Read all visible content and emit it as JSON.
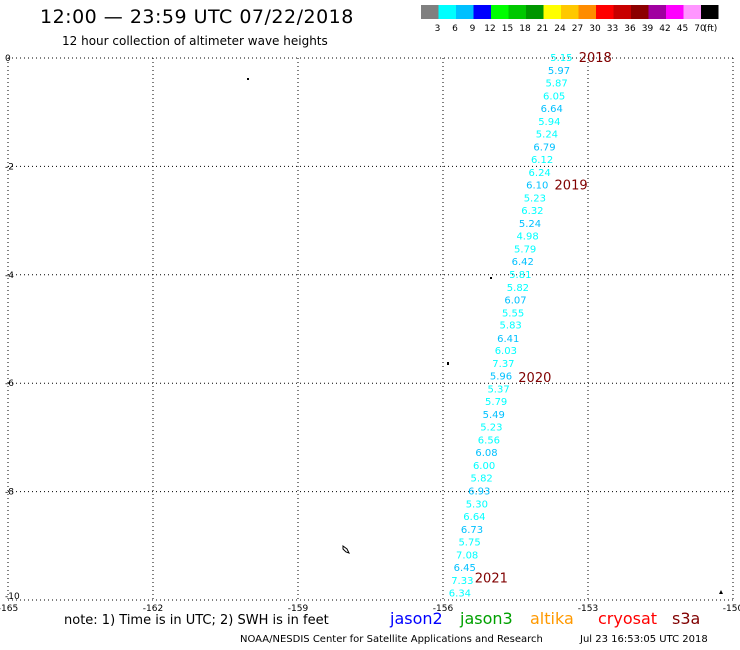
{
  "header": {
    "title": "12:00 — 23:59 UTC 07/22/2018",
    "subtitle": "12 hour collection of altimeter wave heights"
  },
  "legend": {
    "unit_label": "(ft)",
    "bins": [
      {
        "label": "3",
        "color": "#808080"
      },
      {
        "label": "6",
        "color": "#00ffff"
      },
      {
        "label": "9",
        "color": "#00c0ff"
      },
      {
        "label": "12",
        "color": "#0000ff"
      },
      {
        "label": "15",
        "color": "#00ff00"
      },
      {
        "label": "18",
        "color": "#00c800"
      },
      {
        "label": "21",
        "color": "#009600"
      },
      {
        "label": "24",
        "color": "#ffff00"
      },
      {
        "label": "27",
        "color": "#ffc800"
      },
      {
        "label": "30",
        "color": "#ff8c00"
      },
      {
        "label": "33",
        "color": "#ff0000"
      },
      {
        "label": "36",
        "color": "#c80000"
      },
      {
        "label": "39",
        "color": "#8c0000"
      },
      {
        "label": "42",
        "color": "#a000a0"
      },
      {
        "label": "45",
        "color": "#ff00ff"
      },
      {
        "label": "70",
        "color": "#ff96ff"
      },
      {
        "label": "",
        "color": "#000000"
      }
    ]
  },
  "chart_data": {
    "type": "scatter",
    "xlim": [
      -165,
      -150
    ],
    "ylim": [
      -10,
      0
    ],
    "x_ticks": [
      -165,
      -162,
      -159,
      -156,
      -153,
      -150
    ],
    "x_tick_labels": [
      "-165",
      "-162",
      "-159",
      "-156",
      "-153",
      "-150"
    ],
    "y_ticks": [
      0,
      -2,
      -4,
      -6,
      -8,
      -10
    ],
    "y_tick_labels": [
      "0",
      "-2",
      "-4",
      "-6",
      "-8",
      "-10"
    ],
    "grid": true,
    "points_color": "#00ffff",
    "points_color_alt": "#00c0ff",
    "points": [
      {
        "lon": -153.55,
        "lat": 0.0,
        "label": "5.15"
      },
      {
        "lon": -153.6,
        "lat": -0.24,
        "label": "5.97"
      },
      {
        "lon": -153.65,
        "lat": -0.47,
        "label": "5.87"
      },
      {
        "lon": -153.7,
        "lat": -0.71,
        "label": "6.05"
      },
      {
        "lon": -153.75,
        "lat": -0.94,
        "label": "6.64"
      },
      {
        "lon": -153.8,
        "lat": -1.18,
        "label": "5.94"
      },
      {
        "lon": -153.85,
        "lat": -1.41,
        "label": "5.24"
      },
      {
        "lon": -153.9,
        "lat": -1.65,
        "label": "6.79"
      },
      {
        "lon": -153.95,
        "lat": -1.88,
        "label": "6.12"
      },
      {
        "lon": -154.0,
        "lat": -2.12,
        "label": "6.24"
      },
      {
        "lon": -154.05,
        "lat": -2.35,
        "label": "6.10"
      },
      {
        "lon": -154.1,
        "lat": -2.59,
        "label": "5.23"
      },
      {
        "lon": -154.15,
        "lat": -2.82,
        "label": "6.32"
      },
      {
        "lon": -154.2,
        "lat": -3.06,
        "label": "5.24"
      },
      {
        "lon": -154.25,
        "lat": -3.29,
        "label": "4.98"
      },
      {
        "lon": -154.3,
        "lat": -3.53,
        "label": "5.79"
      },
      {
        "lon": -154.35,
        "lat": -3.76,
        "label": "6.42"
      },
      {
        "lon": -154.4,
        "lat": -4.0,
        "label": "5.81"
      },
      {
        "lon": -154.45,
        "lat": -4.24,
        "label": "5.82"
      },
      {
        "lon": -154.5,
        "lat": -4.47,
        "label": "6.07"
      },
      {
        "lon": -154.55,
        "lat": -4.71,
        "label": "5.55"
      },
      {
        "lon": -154.6,
        "lat": -4.94,
        "label": "5.83"
      },
      {
        "lon": -154.65,
        "lat": -5.18,
        "label": "6.41"
      },
      {
        "lon": -154.7,
        "lat": -5.41,
        "label": "6.03"
      },
      {
        "lon": -154.75,
        "lat": -5.65,
        "label": "7.37"
      },
      {
        "lon": -154.8,
        "lat": -5.88,
        "label": "5.96"
      },
      {
        "lon": -154.85,
        "lat": -6.12,
        "label": "5.37"
      },
      {
        "lon": -154.9,
        "lat": -6.35,
        "label": "5.79"
      },
      {
        "lon": -154.95,
        "lat": -6.59,
        "label": "5.49"
      },
      {
        "lon": -155.0,
        "lat": -6.82,
        "label": "5.23"
      },
      {
        "lon": -155.05,
        "lat": -7.06,
        "label": "6.56"
      },
      {
        "lon": -155.1,
        "lat": -7.29,
        "label": "6.08"
      },
      {
        "lon": -155.15,
        "lat": -7.53,
        "label": "6.00"
      },
      {
        "lon": -155.2,
        "lat": -7.76,
        "label": "5.82"
      },
      {
        "lon": -155.25,
        "lat": -8.0,
        "label": "6.93"
      },
      {
        "lon": -155.3,
        "lat": -8.24,
        "label": "5.30"
      },
      {
        "lon": -155.35,
        "lat": -8.47,
        "label": "6.64"
      },
      {
        "lon": -155.4,
        "lat": -8.71,
        "label": "6.73"
      },
      {
        "lon": -155.45,
        "lat": -8.94,
        "label": "5.75"
      },
      {
        "lon": -155.5,
        "lat": -9.18,
        "label": "7.08"
      },
      {
        "lon": -155.55,
        "lat": -9.41,
        "label": "6.45"
      },
      {
        "lon": -155.6,
        "lat": -9.65,
        "label": "7.33"
      },
      {
        "lon": -155.65,
        "lat": -9.88,
        "label": "6.34"
      }
    ],
    "time_labels": [
      {
        "lon": -152.85,
        "lat": 0.0,
        "label": "2018"
      },
      {
        "lon": -153.35,
        "lat": -2.35,
        "label": "2019"
      },
      {
        "lon": -154.1,
        "lat": -5.9,
        "label": "2020"
      },
      {
        "lon": -155.0,
        "lat": -9.6,
        "label": "2021"
      }
    ],
    "time_label_color": "#800000"
  },
  "footer": {
    "note": "note: 1) Time is in UTC; 2) SWH is in feet",
    "satellites": [
      {
        "label": "jason2",
        "color": "#0000ff"
      },
      {
        "label": "jason3",
        "color": "#00a000"
      },
      {
        "label": "altika",
        "color": "#ff9900"
      },
      {
        "label": "cryosat",
        "color": "#ff0000"
      },
      {
        "label": "s3a",
        "color": "#800000"
      }
    ],
    "credit": "NOAA/NESDIS Center for Satellite Applications and Research",
    "stamp": "Jul 23 16:53:05 UTC 2018"
  }
}
